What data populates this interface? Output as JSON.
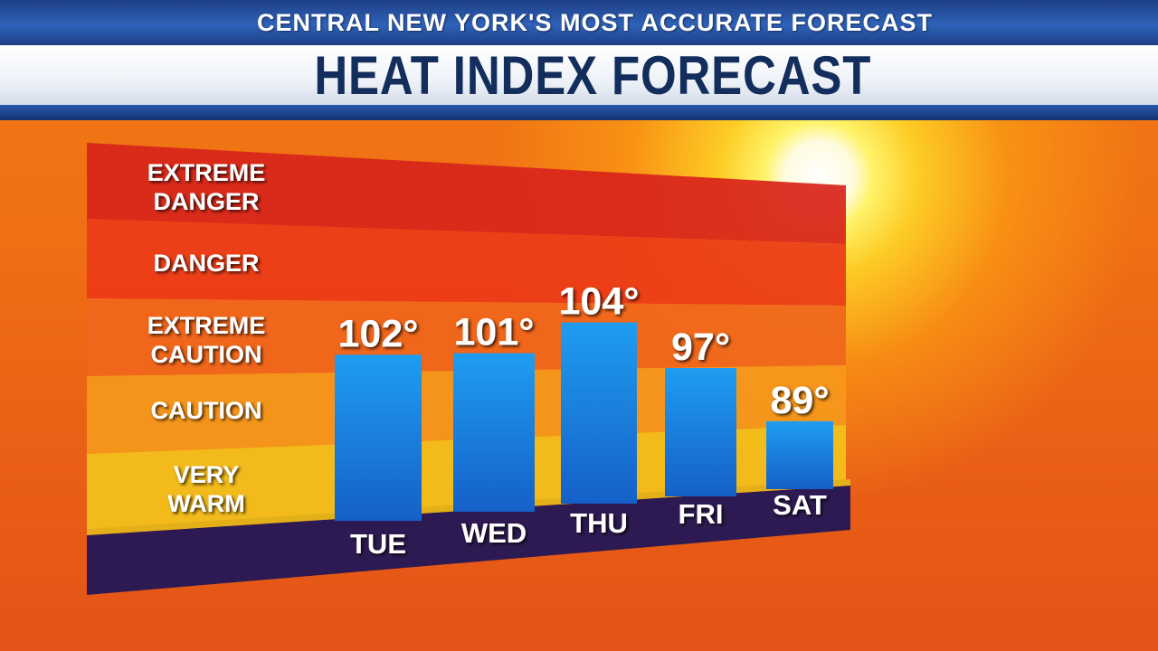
{
  "header": {
    "subtitle": "CENTRAL NEW YORK'S MOST ACCURATE FORECAST",
    "title": "HEAT INDEX FORECAST"
  },
  "chart_data": {
    "type": "bar",
    "title": "HEAT INDEX FORECAST",
    "categories": [
      "TUE",
      "WED",
      "THU",
      "FRI",
      "SAT"
    ],
    "values": [
      102,
      101,
      104,
      97,
      89
    ],
    "value_labels": [
      "102°",
      "101°",
      "104°",
      "97°",
      "89°"
    ],
    "unit": "°",
    "zones": [
      {
        "lines": [
          "EXTREME",
          "DANGER"
        ],
        "color": "#d8251b"
      },
      {
        "lines": [
          "DANGER"
        ],
        "color": "#ec3a18"
      },
      {
        "lines": [
          "EXTREME",
          "CAUTION"
        ],
        "color": "#f0661c"
      },
      {
        "lines": [
          "CAUTION"
        ],
        "color": "#f5981c"
      },
      {
        "lines": [
          "VERY",
          "WARM"
        ],
        "color": "#f2c21c"
      }
    ],
    "bar_color": "#1c8fe0",
    "base_color": "#2e1a52"
  }
}
